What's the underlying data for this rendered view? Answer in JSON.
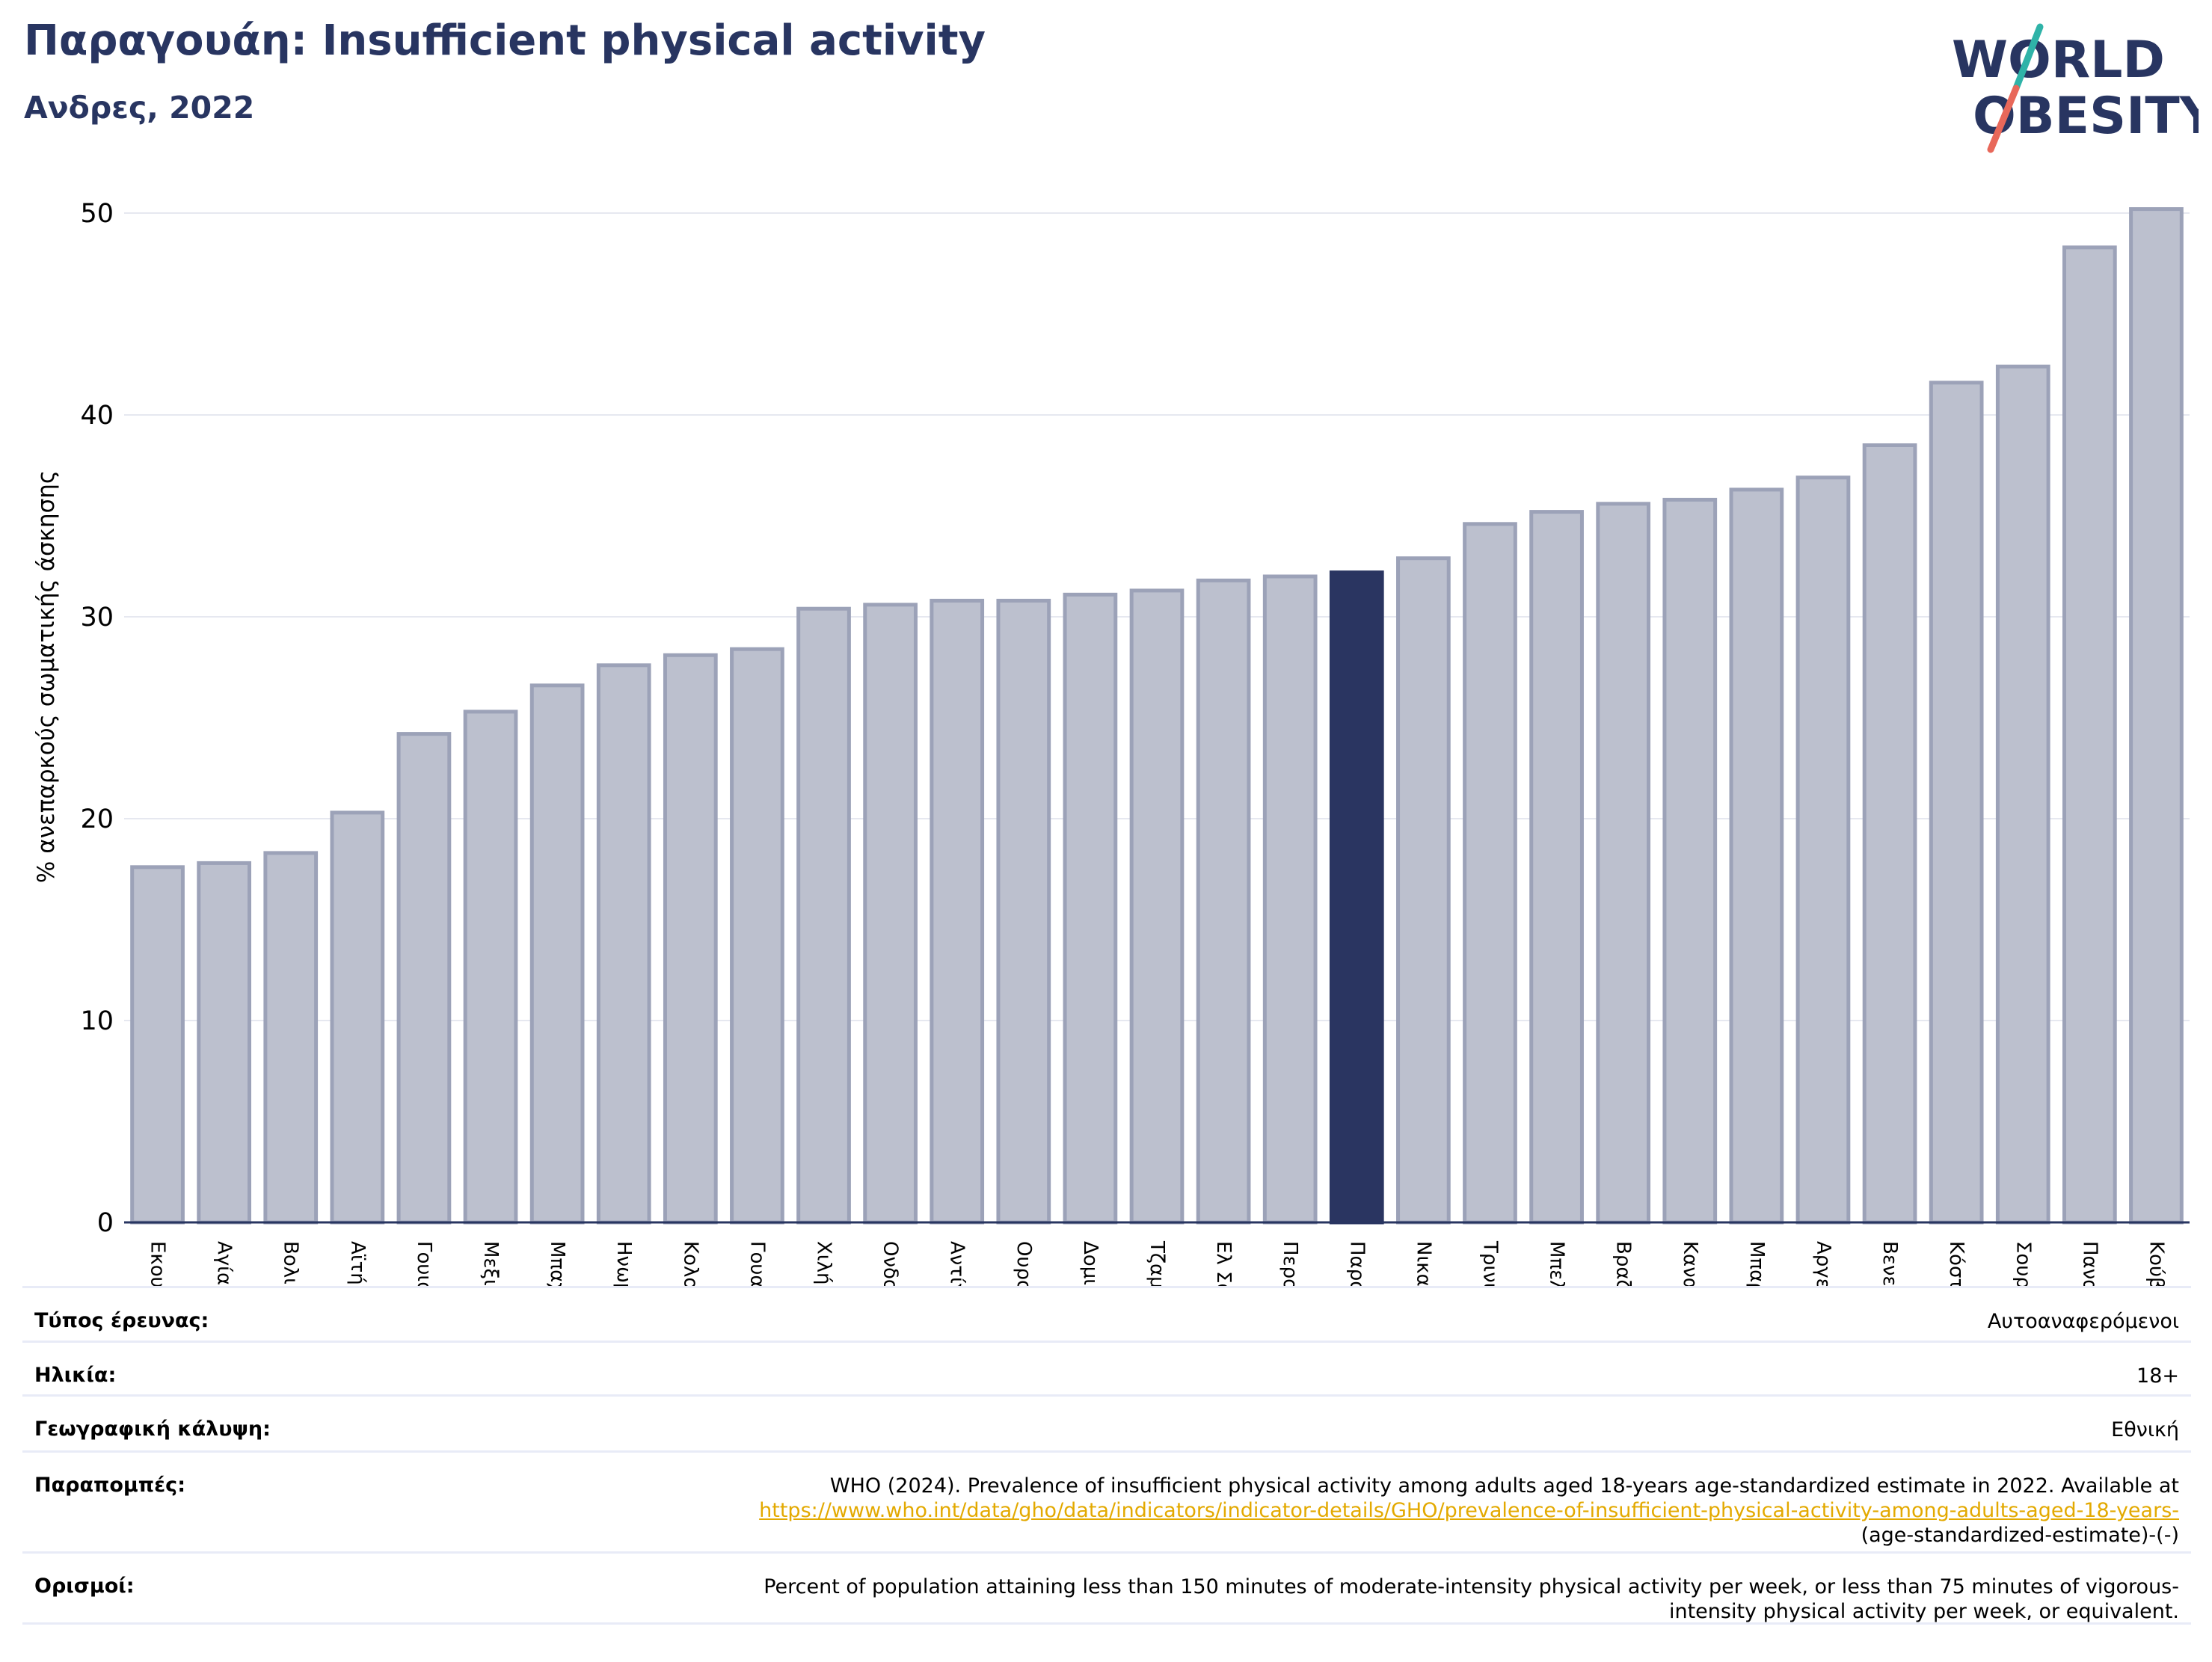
{
  "header": {
    "title": "Παραγουάη: Insufficient physical activity",
    "subtitle": "Ανδρες, 2022"
  },
  "logo": {
    "line1": "WORLD",
    "line2": "OBESITY",
    "colors": {
      "text": "#283561",
      "slash_top": "#2fb3a8",
      "slash_bottom": "#e8685a"
    }
  },
  "colors": {
    "bar": "#bcc0ce",
    "bar_edge": "#9ca2b8",
    "highlight": "#2a3561",
    "grid": "#e6e8f0",
    "axis": "#283561"
  },
  "chart_data": {
    "type": "bar",
    "ylabel": "% ανεπαρκούς σωματικής άσκησης",
    "ylim": [
      0,
      52
    ],
    "yticks": [
      0,
      10,
      20,
      30,
      40,
      50
    ],
    "grid": true,
    "highlight": "Παραγουάη",
    "categories": [
      "Εκουαδόρ",
      "Αγία Λουκία",
      "Βολιβία",
      "Αϊτή",
      "Γουιάνα",
      "Μεξικό",
      "Μπαχάμες",
      "Ηνωμένες Πολιτείες",
      "Κολομβία",
      "Γουατεμάλα",
      "Χιλή",
      "Ονδούρα",
      "Αντίγκουα και Μπαρμπούντα",
      "Ουρουγουάη",
      "Δομινικανή Δημοκρατία",
      "Τζαμάικα",
      "Ελ Σαλβαδόρ",
      "Περού",
      "Παραγουάη",
      "Νικαράγουα",
      "Τρινιντάντ και Τομπάγκο",
      "Μπελίζ",
      "Βραζιλία",
      "Καναδάς",
      "Μπαρμπάντος",
      "Αργεντινή",
      "Βενεζουέλα",
      "Κόστα Ρίκα",
      "Σουρινάμ",
      "Παναμάς",
      "Κούβα"
    ],
    "values": [
      17.6,
      17.8,
      18.3,
      20.3,
      24.2,
      25.3,
      26.6,
      27.6,
      28.1,
      28.4,
      30.4,
      30.6,
      30.8,
      30.8,
      31.1,
      31.3,
      31.8,
      32.0,
      32.2,
      32.9,
      34.6,
      35.2,
      35.6,
      35.8,
      36.3,
      36.9,
      38.5,
      41.6,
      42.4,
      48.3,
      50.2
    ]
  },
  "info": {
    "rows": [
      {
        "label": "Τύπος έρευνας:",
        "value": "Αυτοαναφερόμενοι"
      },
      {
        "label": "Ηλικία:",
        "value": "18+"
      },
      {
        "label": "Γεωγραφική κάλυψη:",
        "value": "Εθνική"
      },
      {
        "label": "Παραπομπές:",
        "value": "WHO (2024). Prevalence of insufficient physical activity among adults aged 18-years age-standardized estimate in 2022. Available at",
        "link": "https://www.who.int/data/gho/data/indicators/indicator-details/GHO/prevalence-of-insufficient-physical-activity-among-adults-aged-18-years-",
        "value_end": "(age-standardized-estimate)-(-)"
      },
      {
        "label": "Ορισμοί:",
        "value": "Percent of population attaining less than 150 minutes of moderate-intensity physical activity per week, or less than 75 minutes of vigorous-",
        "value_end": "intensity physical activity per week, or equivalent."
      }
    ]
  }
}
